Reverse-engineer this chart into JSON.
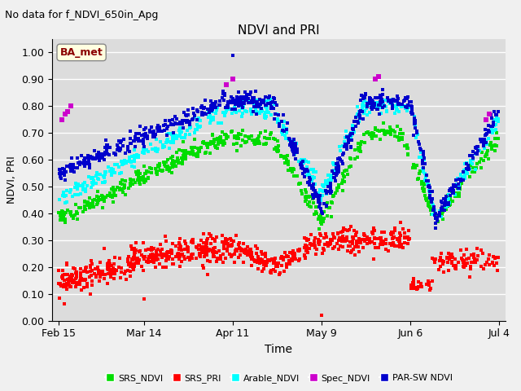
{
  "title": "NDVI and PRI",
  "subtitle": "No data for f_NDVI_650in_Apg",
  "xlabel": "Time",
  "ylabel": "NDVI, PRI",
  "ylim": [
    0.0,
    1.05
  ],
  "yticks": [
    0.0,
    0.1,
    0.2,
    0.3,
    0.4,
    0.5,
    0.6,
    0.7,
    0.8,
    0.9,
    1.0
  ],
  "xtick_labels": [
    "Feb 15",
    "Mar 14",
    "Apr 11",
    "May 9",
    "Jun 6",
    "Jul 4"
  ],
  "xtick_days": [
    0,
    27,
    55,
    83,
    111,
    139
  ],
  "xlim": [
    -2,
    141
  ],
  "annotation_text": "BA_met",
  "colors": {
    "SRS_NDVI": "#00dd00",
    "SRS_PRI": "#ff0000",
    "Arable_NDVI": "#00ffff",
    "Spec_NDVI": "#cc00cc",
    "PAR_SW_NDVI": "#0000cc"
  },
  "background_color": "#dcdcdc",
  "fig_bg": "#f0f0f0",
  "grid_color": "#ffffff"
}
